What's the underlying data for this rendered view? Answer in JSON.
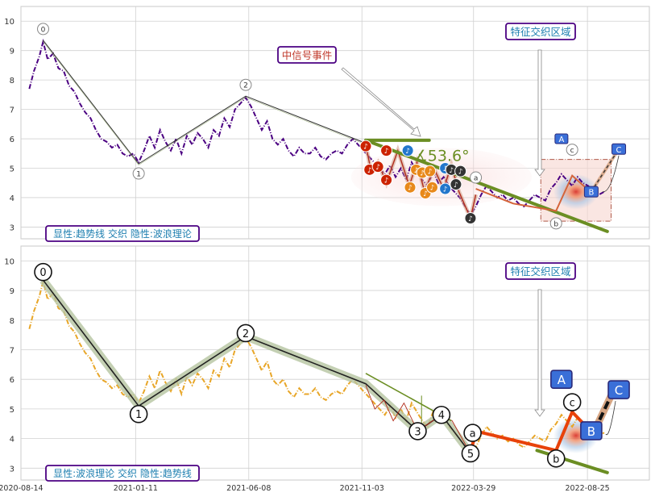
{
  "chart_data": [
    {
      "type": "line",
      "panel": "top",
      "ylim": [
        2.6,
        10.5
      ],
      "yticks": [
        3,
        4,
        5,
        6,
        7,
        8,
        9,
        10
      ],
      "grid": true,
      "legend_box": "显性:趋势线 交织 隐性:波浪理论",
      "price_color": "#4b0082",
      "price_series": [
        [
          "2020-08-25",
          7.7
        ],
        [
          "2020-08-31",
          8.3
        ],
        [
          "2020-09-07",
          8.8
        ],
        [
          "2020-09-12",
          9.3
        ],
        [
          "2020-09-18",
          8.7
        ],
        [
          "2020-09-25",
          8.9
        ],
        [
          "2020-10-02",
          8.4
        ],
        [
          "2020-10-09",
          8.3
        ],
        [
          "2020-10-16",
          7.8
        ],
        [
          "2020-10-23",
          7.6
        ],
        [
          "2020-10-30",
          7.2
        ],
        [
          "2020-11-06",
          6.9
        ],
        [
          "2020-11-13",
          6.7
        ],
        [
          "2020-11-20",
          6.3
        ],
        [
          "2020-11-27",
          6.0
        ],
        [
          "2020-12-04",
          5.9
        ],
        [
          "2020-12-11",
          5.7
        ],
        [
          "2020-12-18",
          5.8
        ],
        [
          "2020-12-25",
          5.5
        ],
        [
          "2021-01-01",
          5.4
        ],
        [
          "2021-01-08",
          5.5
        ],
        [
          "2021-01-15",
          5.2
        ],
        [
          "2021-01-22",
          5.6
        ],
        [
          "2021-01-29",
          6.1
        ],
        [
          "2021-02-05",
          5.7
        ],
        [
          "2021-02-12",
          6.3
        ],
        [
          "2021-02-19",
          5.9
        ],
        [
          "2021-02-26",
          5.6
        ],
        [
          "2021-03-05",
          6.0
        ],
        [
          "2021-03-12",
          5.5
        ],
        [
          "2021-03-19",
          6.1
        ],
        [
          "2021-03-26",
          5.8
        ],
        [
          "2021-04-02",
          6.2
        ],
        [
          "2021-04-09",
          6.0
        ],
        [
          "2021-04-16",
          5.7
        ],
        [
          "2021-04-23",
          6.3
        ],
        [
          "2021-04-30",
          6.1
        ],
        [
          "2021-05-07",
          6.7
        ],
        [
          "2021-05-14",
          6.4
        ],
        [
          "2021-05-21",
          7.0
        ],
        [
          "2021-05-28",
          7.2
        ],
        [
          "2021-06-04",
          7.4
        ],
        [
          "2021-06-11",
          7.1
        ],
        [
          "2021-06-18",
          6.7
        ],
        [
          "2021-06-25",
          6.3
        ],
        [
          "2021-07-02",
          6.6
        ],
        [
          "2021-07-09",
          6.0
        ],
        [
          "2021-07-16",
          5.8
        ],
        [
          "2021-07-23",
          6.0
        ],
        [
          "2021-07-30",
          5.6
        ],
        [
          "2021-08-06",
          5.4
        ],
        [
          "2021-08-13",
          5.7
        ],
        [
          "2021-08-20",
          5.5
        ],
        [
          "2021-08-27",
          5.5
        ],
        [
          "2021-09-03",
          5.7
        ],
        [
          "2021-09-10",
          5.4
        ],
        [
          "2021-09-17",
          5.3
        ],
        [
          "2021-09-24",
          5.5
        ],
        [
          "2021-10-01",
          5.6
        ],
        [
          "2021-10-08",
          5.5
        ],
        [
          "2021-10-15",
          5.8
        ],
        [
          "2021-10-22",
          6.0
        ],
        [
          "2021-10-29",
          5.8
        ],
        [
          "2021-11-05",
          5.6
        ],
        [
          "2021-11-12",
          5.4
        ],
        [
          "2021-11-19",
          5.2
        ],
        [
          "2021-11-26",
          5.0
        ],
        [
          "2021-12-03",
          4.8
        ],
        [
          "2021-12-10",
          5.1
        ],
        [
          "2021-12-17",
          4.7
        ],
        [
          "2021-12-24",
          5.0
        ],
        [
          "2021-12-31",
          4.6
        ],
        [
          "2022-01-07",
          5.2
        ],
        [
          "2022-01-14",
          4.9
        ],
        [
          "2022-01-21",
          4.6
        ],
        [
          "2022-01-28",
          4.4
        ],
        [
          "2022-02-04",
          4.9
        ],
        [
          "2022-02-11",
          4.5
        ],
        [
          "2022-02-18",
          4.7
        ],
        [
          "2022-02-25",
          4.4
        ],
        [
          "2022-03-04",
          4.2
        ],
        [
          "2022-03-11",
          4.0
        ],
        [
          "2022-03-18",
          3.7
        ],
        [
          "2022-03-25",
          3.4
        ],
        [
          "2022-04-01",
          3.7
        ],
        [
          "2022-04-08",
          4.1
        ],
        [
          "2022-04-15",
          4.4
        ],
        [
          "2022-04-22",
          4.2
        ],
        [
          "2022-04-29",
          4.0
        ],
        [
          "2022-05-06",
          4.1
        ],
        [
          "2022-05-13",
          3.9
        ],
        [
          "2022-05-20",
          4.0
        ],
        [
          "2022-05-27",
          3.8
        ],
        [
          "2022-06-03",
          3.7
        ],
        [
          "2022-06-10",
          3.9
        ],
        [
          "2022-06-17",
          4.1
        ],
        [
          "2022-06-24",
          4.0
        ],
        [
          "2022-07-01",
          3.9
        ],
        [
          "2022-07-08",
          4.3
        ],
        [
          "2022-07-15",
          4.5
        ],
        [
          "2022-07-22",
          4.8
        ],
        [
          "2022-07-29",
          4.6
        ],
        [
          "2022-08-05",
          4.4
        ],
        [
          "2022-08-12",
          4.7
        ],
        [
          "2022-08-19",
          4.5
        ],
        [
          "2022-08-26",
          4.4
        ],
        [
          "2022-09-02",
          4.2
        ],
        [
          "2022-09-09",
          4.1
        ],
        [
          "2022-09-16",
          4.2
        ]
      ],
      "wave_points": [
        {
          "label": "0",
          "x": "2020-09-12",
          "y": 9.35
        },
        {
          "label": "1",
          "x": "2021-01-15",
          "y": 5.15
        },
        {
          "label": "2",
          "x": "2021-06-04",
          "y": 7.45
        },
        {
          "label": "a",
          "x": "2022-04-01",
          "y": 4.3
        },
        {
          "label": "b",
          "x": "2022-07-15",
          "y": 3.4
        },
        {
          "label": "c",
          "x": "2022-08-05",
          "y": 5.3
        },
        {
          "label": "A",
          "x": "2022-07-22",
          "y": 6.0
        },
        {
          "label": "B",
          "x": "2022-08-30",
          "y": 4.2
        },
        {
          "label": "C",
          "x": "2022-10-05",
          "y": 5.65
        }
      ],
      "music_notes": [
        {
          "x": "2021-11-08",
          "y": 5.75,
          "color": "#cc2200"
        },
        {
          "x": "2021-11-13",
          "y": 4.95,
          "color": "#cc2200"
        },
        {
          "x": "2021-11-24",
          "y": 5.05,
          "color": "#cc2200"
        },
        {
          "x": "2021-12-05",
          "y": 5.6,
          "color": "#cc2200"
        },
        {
          "x": "2021-12-05",
          "y": 4.6,
          "color": "#cc2200"
        },
        {
          "x": "2022-01-02",
          "y": 5.6,
          "color": "#2277cc"
        },
        {
          "x": "2022-01-05",
          "y": 4.35,
          "color": "#e8891a"
        },
        {
          "x": "2022-01-13",
          "y": 4.95,
          "color": "#e8891a"
        },
        {
          "x": "2022-01-21",
          "y": 4.85,
          "color": "#e8891a"
        },
        {
          "x": "2022-01-25",
          "y": 4.15,
          "color": "#e8891a"
        },
        {
          "x": "2022-01-31",
          "y": 4.9,
          "color": "#e8891a"
        },
        {
          "x": "2022-02-03",
          "y": 4.35,
          "color": "#e8891a"
        },
        {
          "x": "2022-02-20",
          "y": 5.0,
          "color": "#2277cc"
        },
        {
          "x": "2022-02-20",
          "y": 4.3,
          "color": "#2277cc"
        },
        {
          "x": "2022-02-28",
          "y": 4.95,
          "color": "#333333"
        },
        {
          "x": "2022-03-06",
          "y": 4.45,
          "color": "#333333"
        },
        {
          "x": "2022-03-12",
          "y": 4.9,
          "color": "#333333"
        },
        {
          "x": "2022-03-25",
          "y": 3.3,
          "color": "#333333"
        }
      ],
      "annotations": {
        "angle_label": "∡53.6°",
        "signal_box": "中信号事件",
        "zone_box": "特征交织区域"
      }
    },
    {
      "type": "line",
      "panel": "bottom",
      "ylim": [
        2.6,
        10.5
      ],
      "yticks": [
        3,
        4,
        5,
        6,
        7,
        8,
        9,
        10
      ],
      "grid": true,
      "legend_box": "显性:波浪理论 交织 隐性:趋势线",
      "price_color": "#e8a628",
      "wave_points": [
        {
          "label": "0",
          "x": "2020-09-12",
          "y": 9.35
        },
        {
          "label": "1",
          "x": "2021-01-15",
          "y": 5.1
        },
        {
          "label": "2",
          "x": "2021-06-04",
          "y": 7.45
        },
        {
          "label": "3",
          "x": "2022-01-15",
          "y": 4.25
        },
        {
          "label": "4",
          "x": "2022-02-15",
          "y": 4.8
        },
        {
          "label": "5",
          "x": "2022-03-25",
          "y": 3.5
        },
        {
          "label": "a",
          "x": "2022-04-01",
          "y": 4.3
        },
        {
          "label": "b",
          "x": "2022-07-15",
          "y": 3.6
        },
        {
          "label": "c",
          "x": "2022-08-05",
          "y": 4.9
        },
        {
          "label": "A",
          "x": "2022-07-22",
          "y": 6.0
        },
        {
          "label": "B",
          "x": "2022-08-30",
          "y": 4.1
        },
        {
          "label": "C",
          "x": "2022-10-05",
          "y": 5.65
        }
      ],
      "annotations": {
        "zone_box": "特征交织区域"
      }
    }
  ],
  "x_axis": {
    "start": "2020-08-14",
    "end": "2022-11-14",
    "ticks": [
      "2020-08-14",
      "2021-01-11",
      "2021-06-08",
      "2021-11-03",
      "2022-03-29",
      "2022-08-25"
    ]
  },
  "colors": {
    "grid": "#d0d0d0",
    "trend_line": "#6b8e23",
    "wave_line": "#333333",
    "wave_highlight": "#b5c4a0",
    "correction_line": "#e8420a",
    "box_border": "#4b0082",
    "box_text": "#1e7fb0",
    "signal_text": "#c0392b",
    "abc_fill": "#3a6fd8"
  }
}
